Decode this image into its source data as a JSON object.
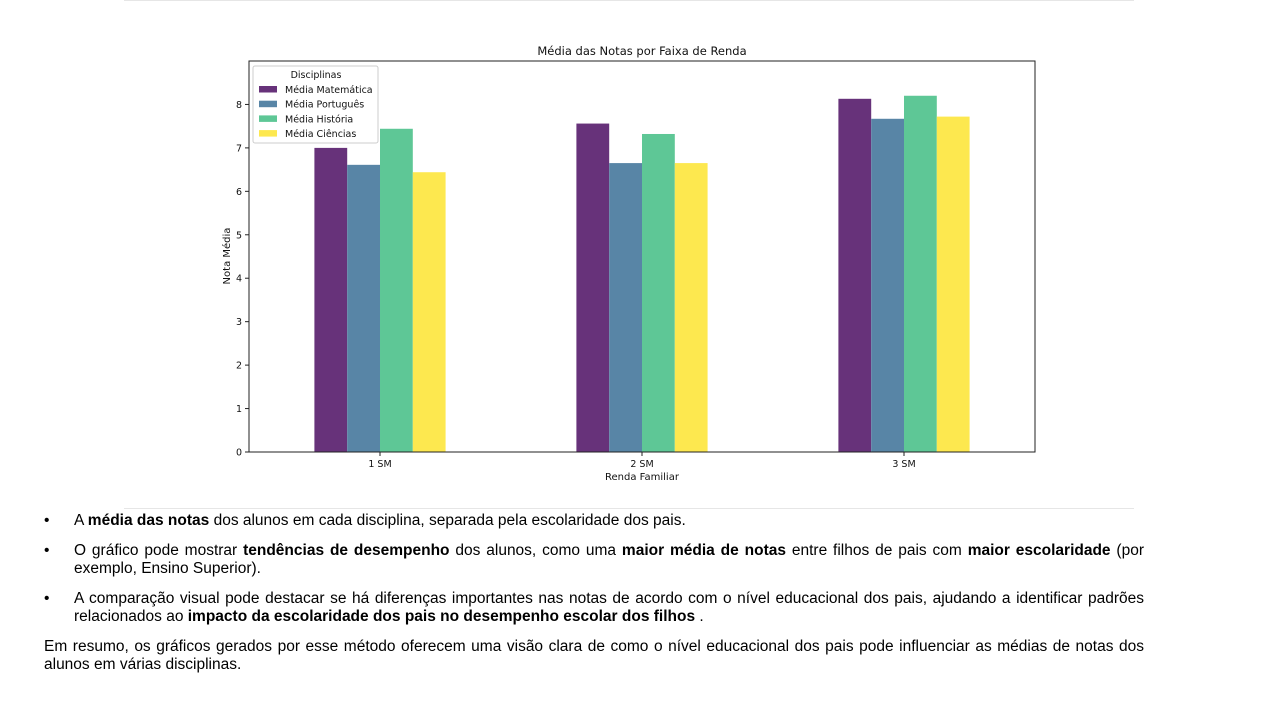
{
  "chart_data": {
    "type": "bar",
    "title": "Média das Notas por Faixa de Renda",
    "xlabel": "Renda Familiar",
    "ylabel": "Nota Média",
    "categories": [
      "1 SM",
      "2 SM",
      "3 SM"
    ],
    "ylim": [
      0,
      9
    ],
    "yticks": [
      0,
      1,
      2,
      3,
      4,
      5,
      6,
      7,
      8
    ],
    "legend_title": "Disciplinas",
    "legend_position": "top-left",
    "grid": false,
    "series": [
      {
        "name": "Média Matemática",
        "color": "#67327a",
        "values": [
          7.0,
          7.56,
          8.13
        ]
      },
      {
        "name": "Média Português",
        "color": "#5885a6",
        "values": [
          6.61,
          6.65,
          7.67
        ]
      },
      {
        "name": "Média História",
        "color": "#5ec796",
        "values": [
          7.44,
          7.32,
          8.2
        ]
      },
      {
        "name": "Média Ciências",
        "color": "#fde84f",
        "values": [
          6.44,
          6.65,
          7.72
        ]
      }
    ]
  },
  "bullets": [
    [
      {
        "t": "A ",
        "b": false
      },
      {
        "t": "média das notas",
        "b": true
      },
      {
        "t": " dos alunos em cada disciplina, separada pela escolaridade dos pais.",
        "b": false
      }
    ],
    [
      {
        "t": "O gráfico pode mostrar ",
        "b": false
      },
      {
        "t": "tendências de desempenho",
        "b": true
      },
      {
        "t": " dos alunos, como uma ",
        "b": false
      },
      {
        "t": "maior média de notas",
        "b": true
      },
      {
        "t": " entre filhos de pais com ",
        "b": false
      },
      {
        "t": "maior escolaridade",
        "b": true
      },
      {
        "t": " (por exemplo, Ensino Superior).",
        "b": false
      }
    ],
    [
      {
        "t": "A comparação visual pode destacar se há diferenças importantes nas notas de acordo com o nível educacional dos pais, ajudando a identificar padrões relacionados ao ",
        "b": false
      },
      {
        "t": "impacto da escolaridade dos pais no desempenho escolar dos filhos",
        "b": true
      },
      {
        "t": " .",
        "b": false
      }
    ]
  ],
  "bullet_symbol": "•",
  "summary": "Em resumo, os gráficos gerados por esse método oferecem uma visão clara de como o nível educacional dos pais pode influenciar as médias de notas dos alunos em várias disciplinas."
}
